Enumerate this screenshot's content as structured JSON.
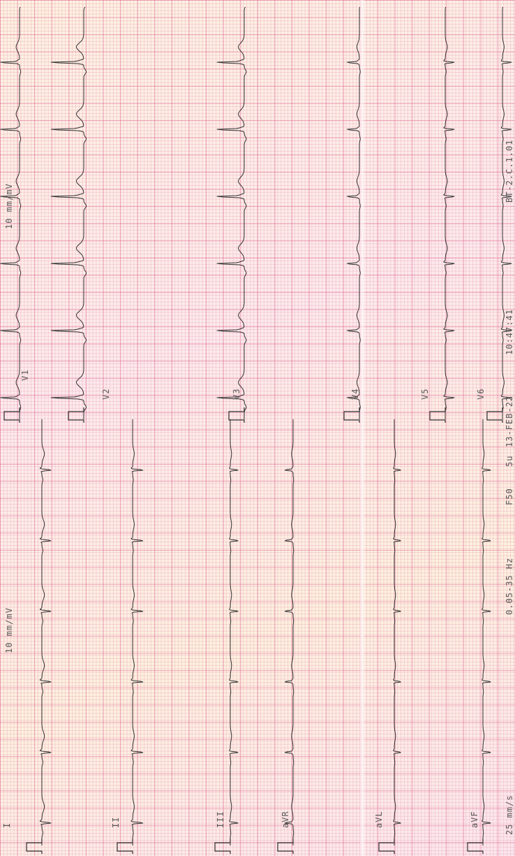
{
  "top_gain_label": "10 mm/mV",
  "leads_limb": [
    "I",
    "II",
    "III",
    "aVR",
    "aVL",
    "aVF"
  ],
  "leads_chest": [
    "V1",
    "V2",
    "V3",
    "V4",
    "V5",
    "V6"
  ],
  "footer": {
    "speed": "25 mm/s",
    "filter": "0.05-35 Hz",
    "mains": "F50",
    "device_code": "5u",
    "date": "13-FEB-22",
    "time": "10:47:41",
    "software": "BT-2.C.1.01"
  },
  "colors": {
    "paper": "#fceaf0",
    "grid_major": "#e07096",
    "grid_minor": "#ecaabe",
    "trace": "#303030",
    "text": "#5a5a5a"
  }
}
